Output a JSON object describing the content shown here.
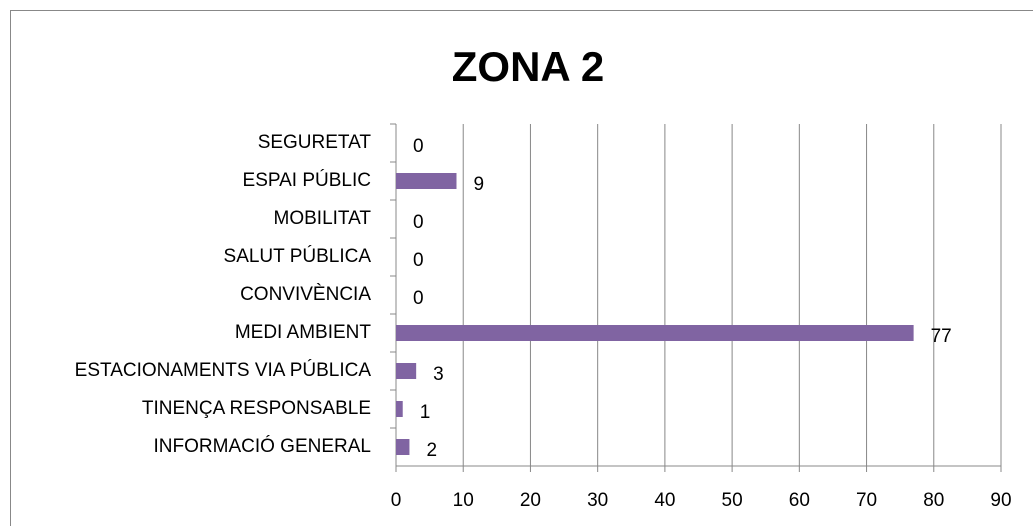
{
  "chart_data": {
    "type": "hbar",
    "title": "ZONA 2",
    "categories": [
      "SEGURETAT",
      "ESPAI PÚBLIC",
      "MOBILITAT",
      "SALUT PÚBLICA",
      "CONVIVÈNCIA",
      "MEDI AMBIENT",
      "ESTACIONAMENTS VIA PÚBLICA",
      "TINENÇA RESPONSABLE",
      "INFORMACIÓ GENERAL"
    ],
    "values": [
      0,
      9,
      0,
      0,
      0,
      77,
      3,
      1,
      2
    ],
    "color": "#8064a2",
    "xlim": [
      0,
      90
    ],
    "xticks": [
      0,
      10,
      20,
      30,
      40,
      50,
      60,
      70,
      80,
      90
    ],
    "grid": true
  }
}
